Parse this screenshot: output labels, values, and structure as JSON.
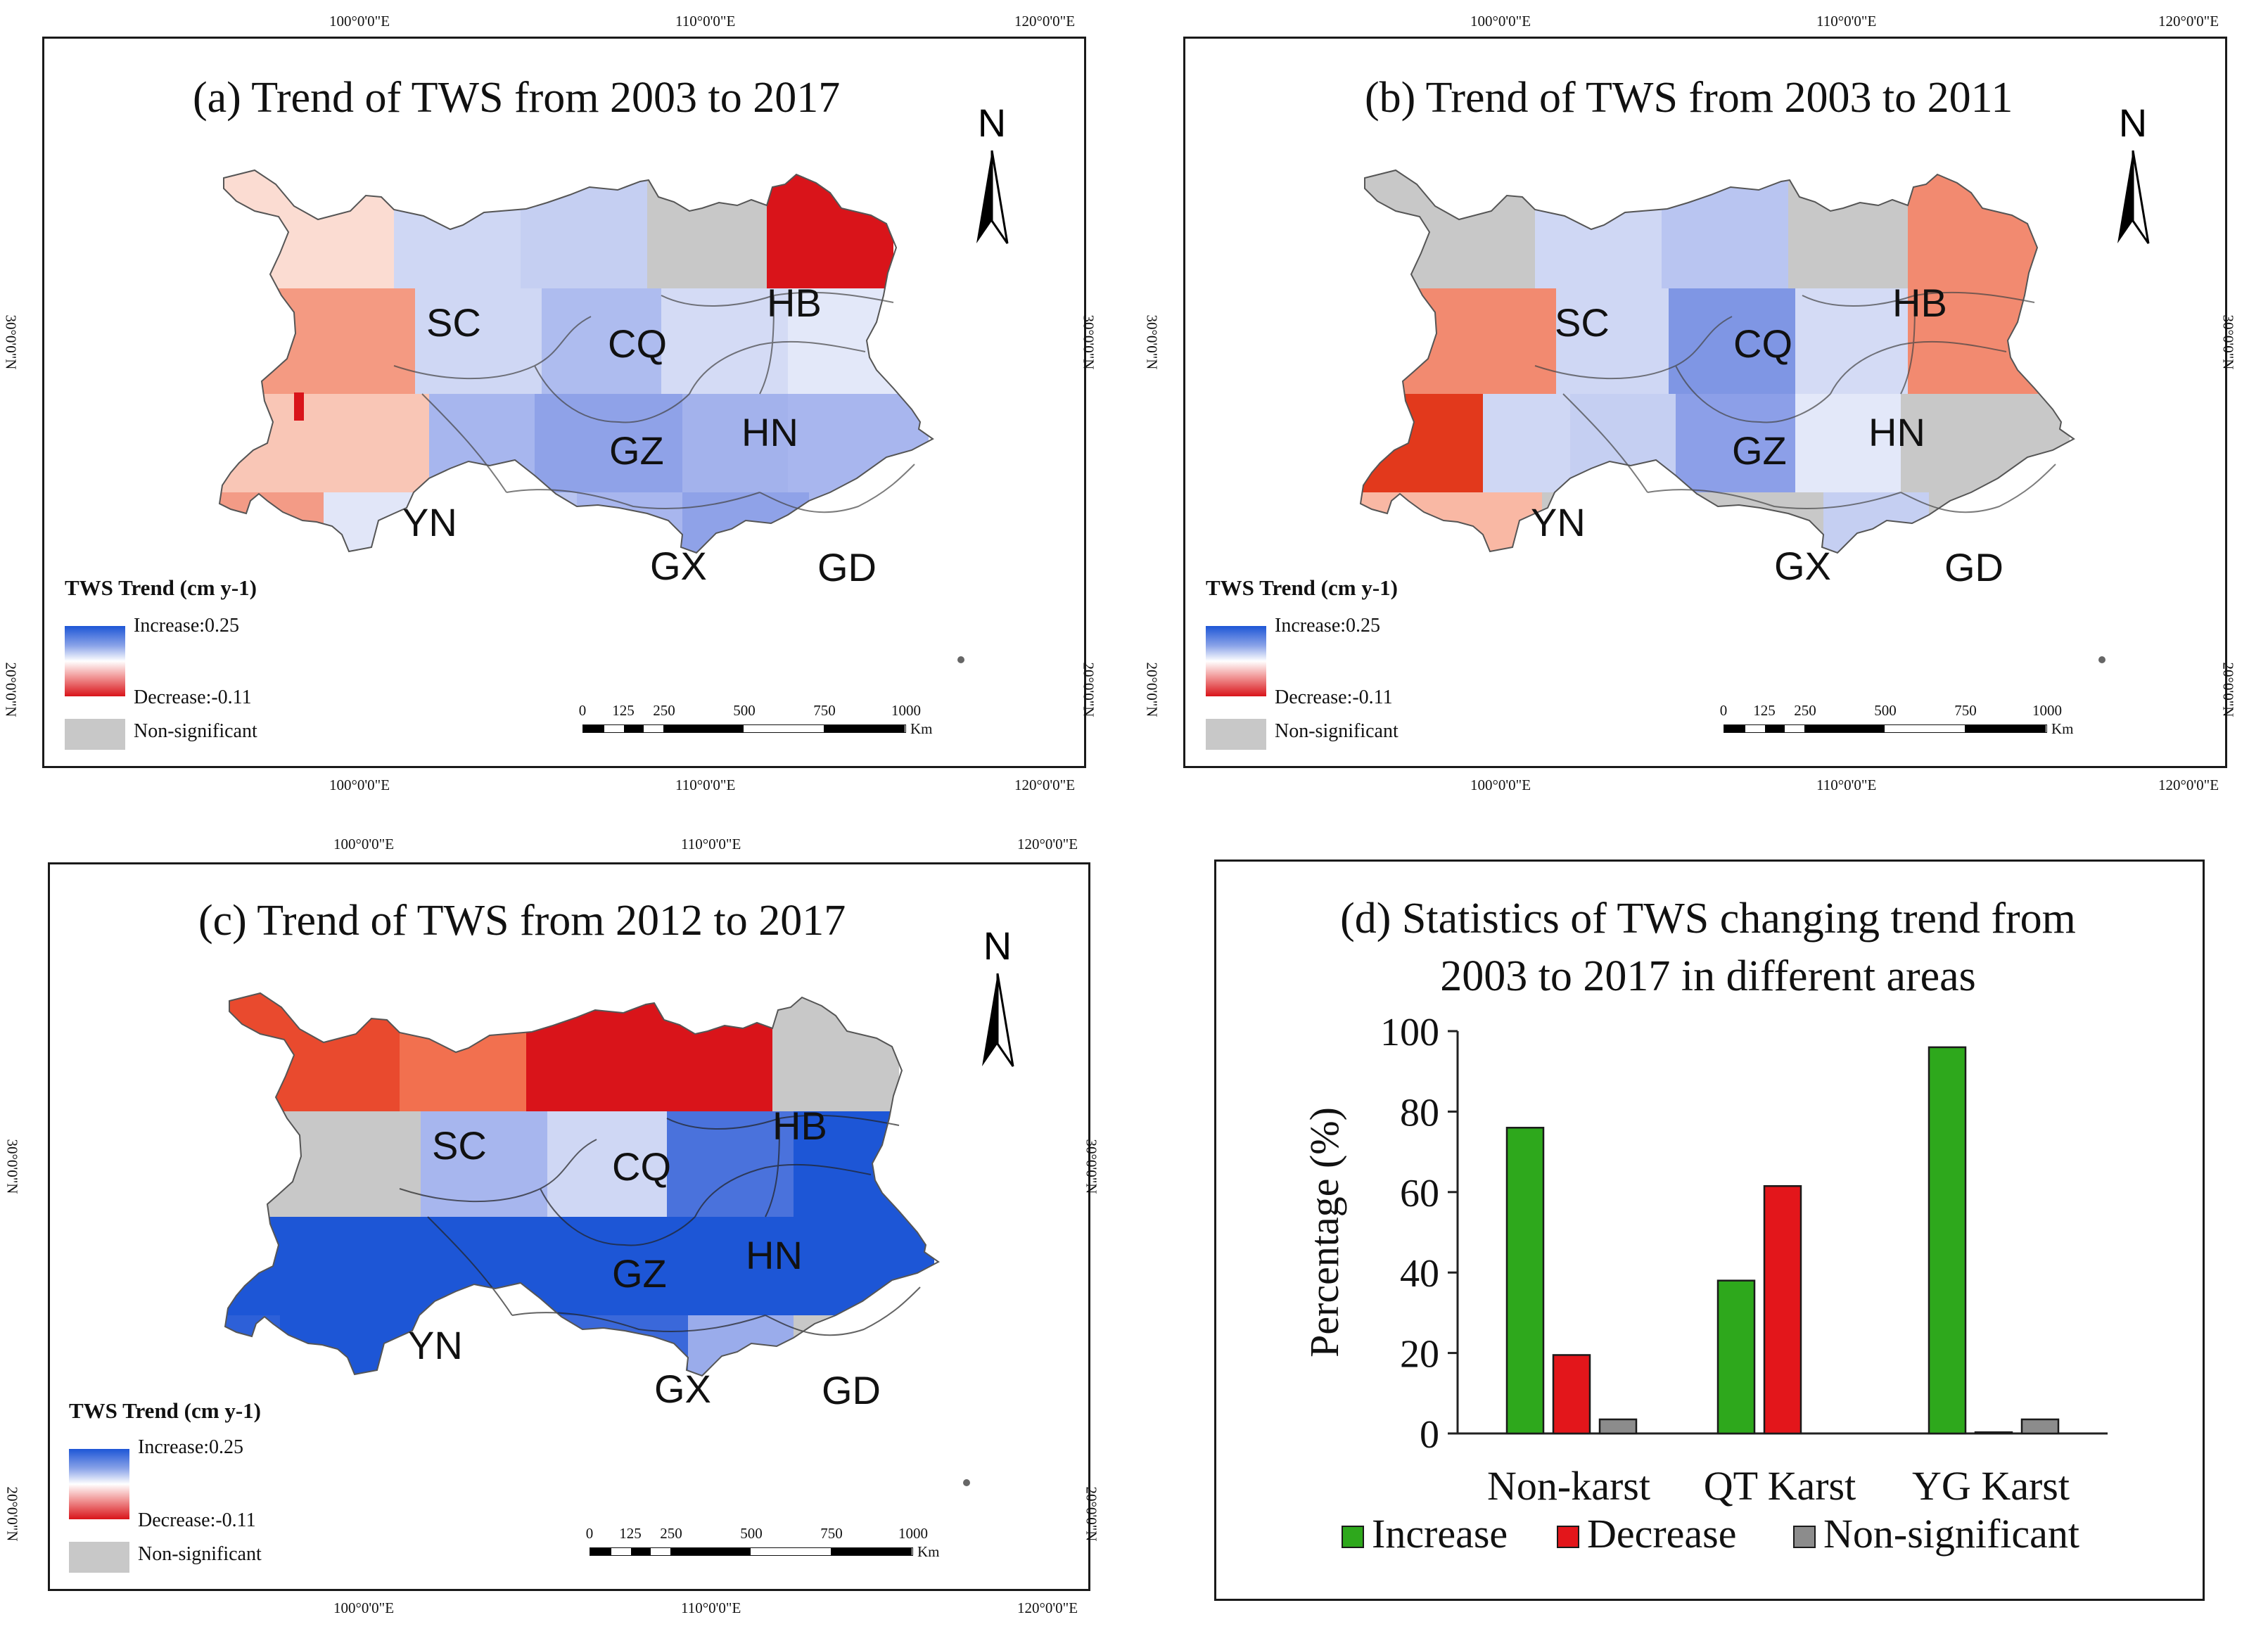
{
  "coords": {
    "lon100": "100°0'0\"E",
    "lon110": "110°0'0\"E",
    "lon120": "120°0'0\"E",
    "lat30": "30°0'0\"N",
    "lat20": "20°0'0\"N"
  },
  "north_label": "N",
  "provinces": [
    "SC",
    "CQ",
    "HB",
    "GZ",
    "HN",
    "YN",
    "GX",
    "GD"
  ],
  "legend": {
    "title": "TWS Trend (cm y-1)",
    "increase": "Increase:0.25",
    "decrease": "Decrease:-0.11",
    "nonsig": "Non-significant"
  },
  "scalebar": {
    "ticks": [
      "0",
      "125",
      "250",
      "500",
      "750",
      "1000"
    ],
    "unit": "Km"
  },
  "colors": {
    "strong_blue": "#1d56d6",
    "mid_blue": "#8c9fe8",
    "light_blue": "#cbd5f5",
    "pale_blue": "#e1e6f8",
    "red": "#d9141a",
    "salmon": "#f28a70",
    "pale_red": "#f8c4b4",
    "grey": "#c8c8c8",
    "bar_increase": "#2ea81c",
    "bar_decrease": "#e3161b",
    "bar_nonsig": "#8c8c8c"
  },
  "maps": [
    {
      "id": "a",
      "title": "(a) Trend of TWS from 2003 to 2017"
    },
    {
      "id": "b",
      "title": "(b) Trend of TWS from 2003 to 2011"
    },
    {
      "id": "c",
      "title": "(c) Trend of TWS from 2012 to 2017"
    }
  ],
  "chart_data": {
    "type": "bar",
    "title": "(d) Statistics of TWS changing trend from 2003 to 2017 in different areas",
    "title_line1": "(d) Statistics of TWS changing trend from",
    "title_line2": "2003 to 2017 in different areas",
    "categories": [
      "Non-karst",
      "QT Karst",
      "YG Karst"
    ],
    "series": [
      {
        "name": "Increase",
        "values": [
          76,
          38,
          96
        ]
      },
      {
        "name": "Decrease",
        "values": [
          19.5,
          61.5,
          0.3
        ]
      },
      {
        "name": "Non-significant",
        "values": [
          3.5,
          0,
          3.5
        ]
      }
    ],
    "ylabel": "Percentage (%)",
    "xlabel": "",
    "ylim": [
      0,
      100
    ],
    "yticks": [
      "0",
      "20",
      "40",
      "60",
      "80",
      "100"
    ],
    "legend_position": "bottom"
  }
}
